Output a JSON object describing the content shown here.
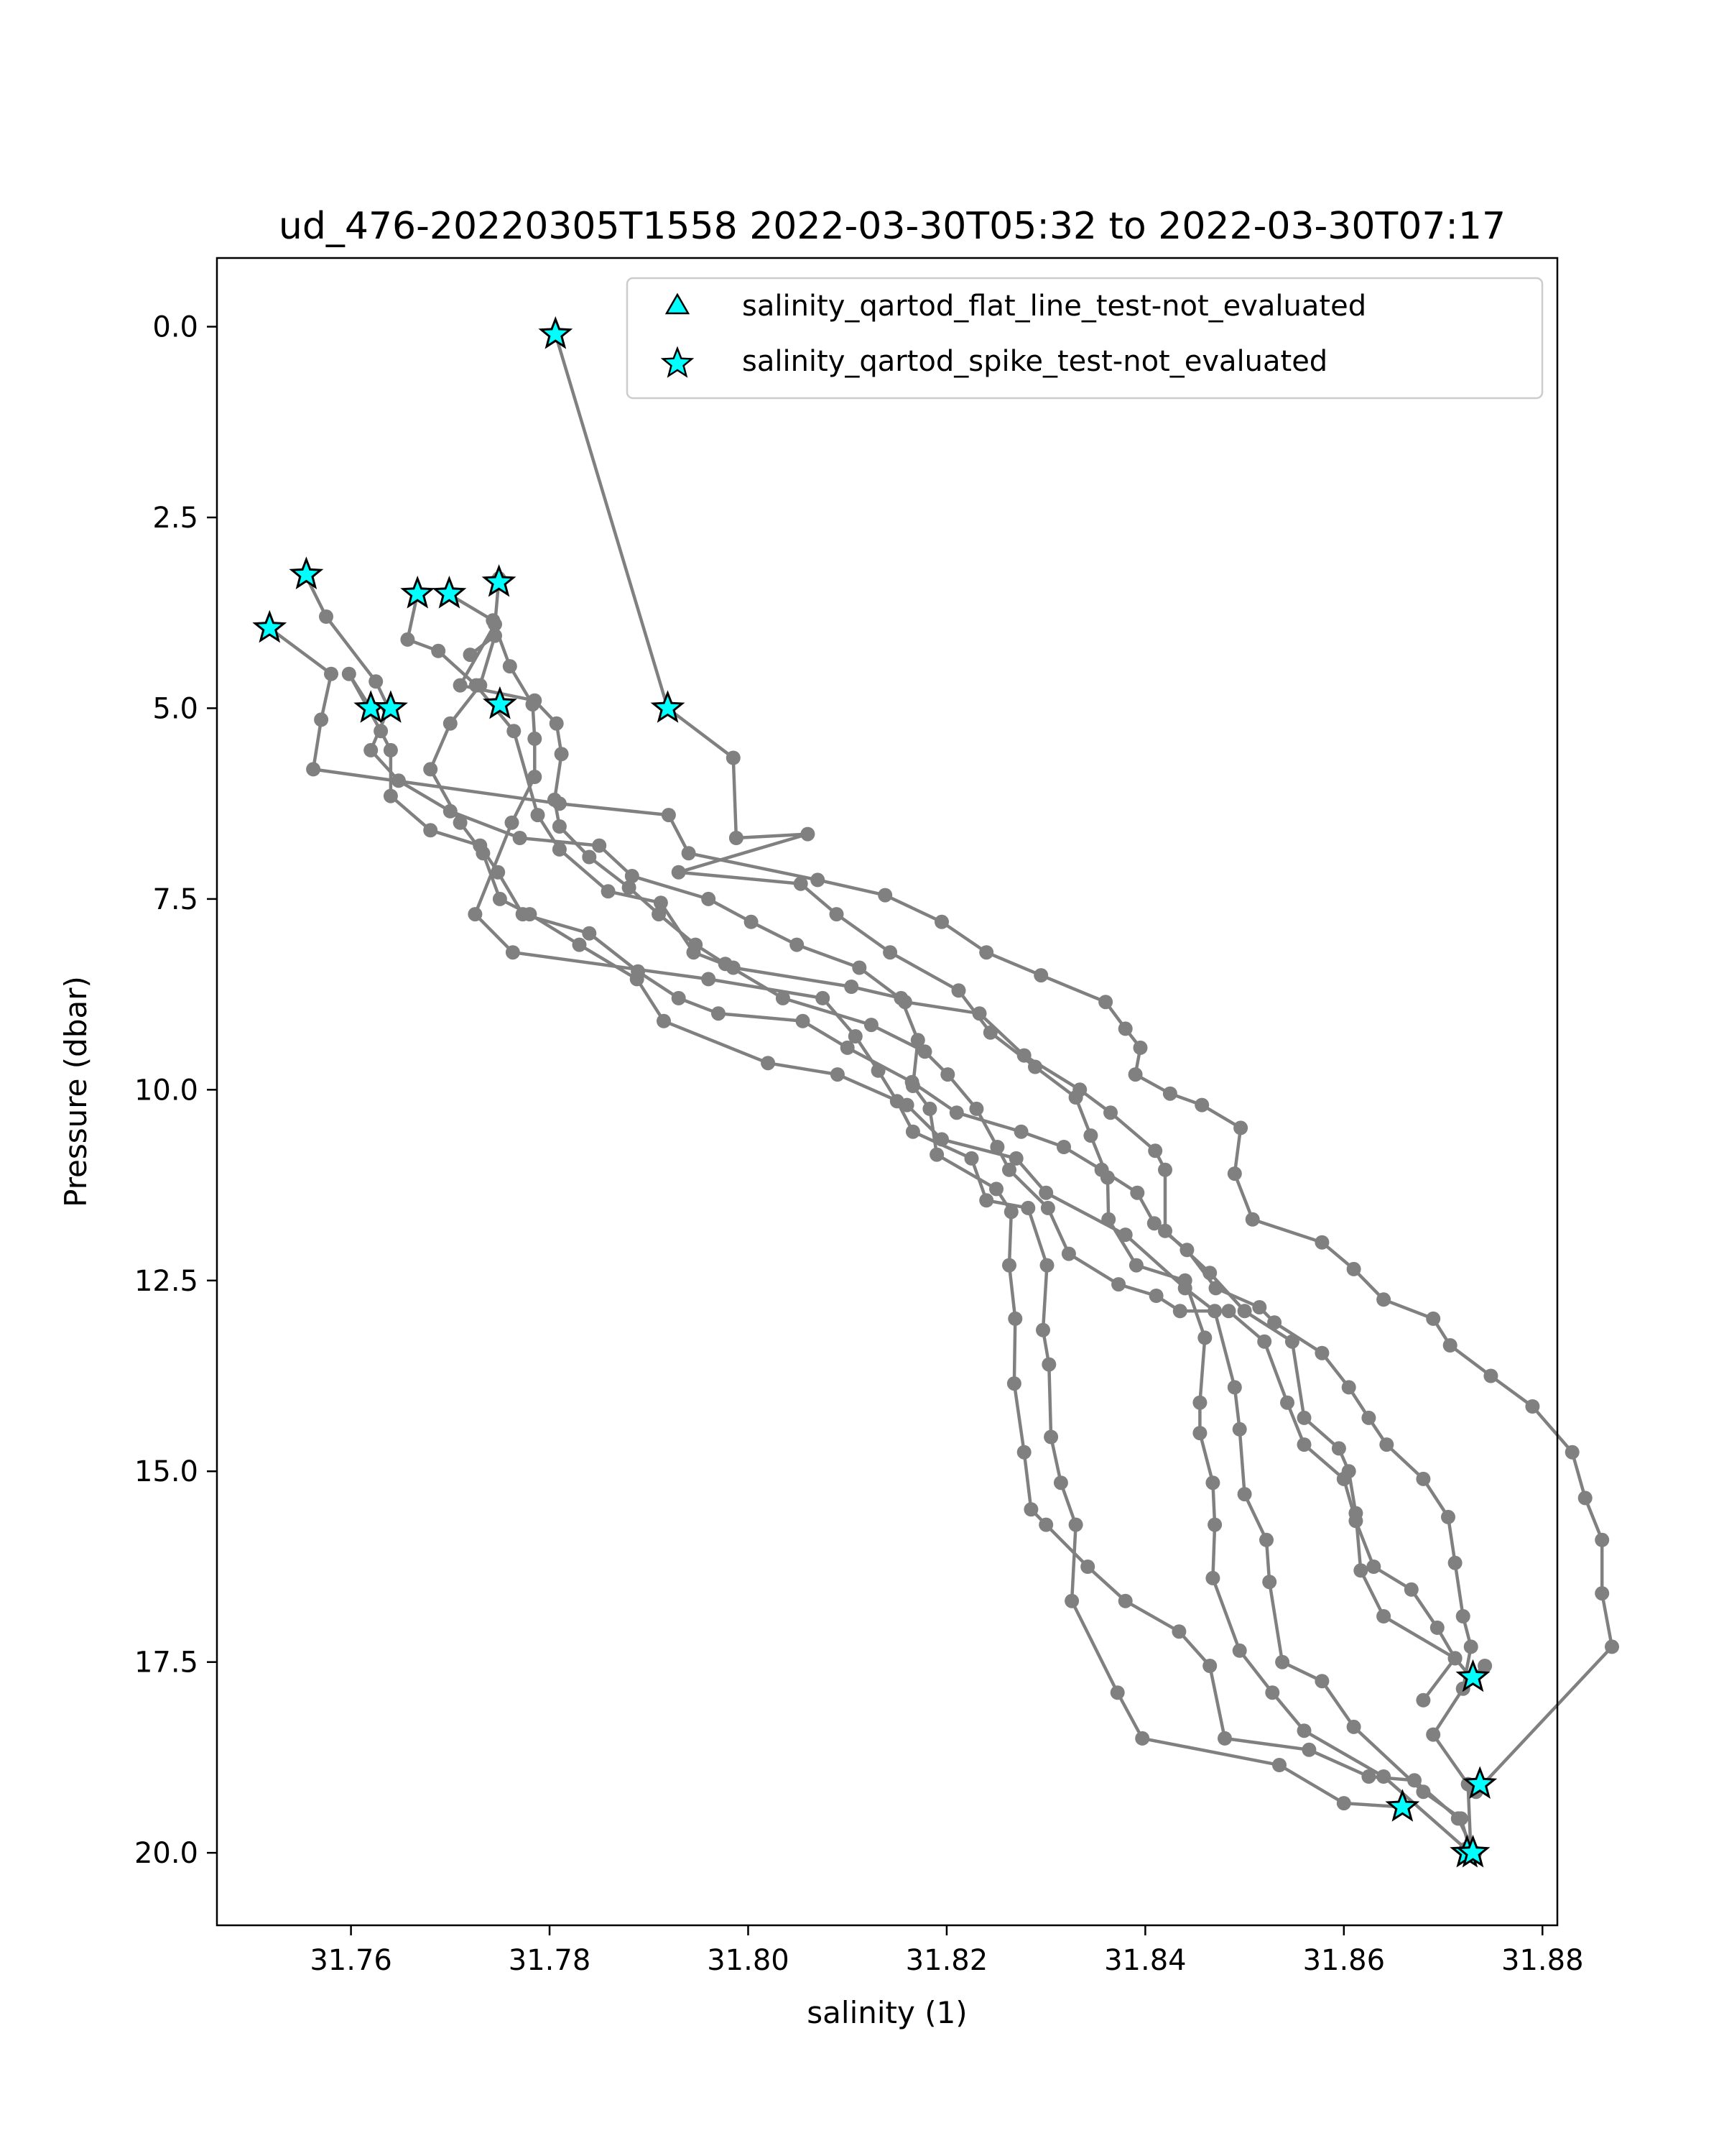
{
  "chart_data": {
    "type": "scatter",
    "title": "ud_476-20220305T1558 2022-03-30T05:32 to 2022-03-30T07:17",
    "xlabel": "salinity (1)",
    "ylabel": "Pressure (dbar)",
    "xlim": [
      31.7465,
      31.8815
    ],
    "ylim": [
      20.95,
      -0.9
    ],
    "y_inverted": true,
    "xticks": [
      "31.76",
      "31.78",
      "31.80",
      "31.82",
      "31.84",
      "31.86",
      "31.88"
    ],
    "yticks": [
      "0.0",
      "2.5",
      "5.0",
      "7.5",
      "10.0",
      "12.5",
      "15.0",
      "17.5",
      "20.0"
    ],
    "xtick_values": [
      31.76,
      31.78,
      31.8,
      31.82,
      31.84,
      31.86,
      31.88
    ],
    "ytick_values": [
      0.0,
      2.5,
      5.0,
      7.5,
      10.0,
      12.5,
      15.0,
      17.5,
      20.0
    ],
    "grid": false,
    "legend_position": "top-right",
    "legend": [
      {
        "label": "salinity_qartod_flat_line_test-not_evaluated",
        "marker": "triangle"
      },
      {
        "label": "salinity_qartod_spike_test-not_evaluated",
        "marker": "star"
      }
    ],
    "colors": {
      "profile_line": "#808080",
      "flag_marker": "#00ffff",
      "marker_edge": "#000000"
    },
    "series": [
      {
        "points": [
          [
            31.7806,
            0.1
          ],
          [
            31.7919,
            5.0
          ],
          [
            31.7985,
            5.65
          ],
          [
            31.7988,
            6.7
          ],
          [
            31.806,
            6.65
          ],
          [
            31.793,
            7.15
          ],
          [
            31.8053,
            7.3
          ],
          [
            31.8089,
            7.7
          ],
          [
            31.8143,
            8.2
          ],
          [
            31.8212,
            8.7
          ],
          [
            31.8244,
            9.25
          ],
          [
            31.8289,
            9.7
          ],
          [
            31.833,
            10.1
          ],
          [
            31.8345,
            10.6
          ],
          [
            31.8362,
            11.15
          ],
          [
            31.8363,
            11.7
          ],
          [
            31.8391,
            12.3
          ],
          [
            31.844,
            12.5
          ],
          [
            31.846,
            13.25
          ],
          [
            31.8455,
            14.1
          ],
          [
            31.8455,
            14.5
          ],
          [
            31.8468,
            15.15
          ],
          [
            31.847,
            15.7
          ],
          [
            31.8468,
            16.4
          ],
          [
            31.8495,
            17.35
          ],
          [
            31.8528,
            17.9
          ],
          [
            31.856,
            18.4
          ],
          [
            31.864,
            19.0
          ],
          [
            31.8723,
            19.95
          ]
        ]
      },
      {
        "points": [
          [
            31.772,
            4.3
          ],
          [
            31.7745,
            4.05
          ],
          [
            31.773,
            4.7
          ],
          [
            31.77,
            5.2
          ],
          [
            31.768,
            5.8
          ],
          [
            31.771,
            6.5
          ],
          [
            31.7733,
            6.9
          ],
          [
            31.775,
            7.5
          ],
          [
            31.778,
            7.7
          ],
          [
            31.783,
            8.1
          ],
          [
            31.7888,
            8.55
          ],
          [
            31.7915,
            9.1
          ],
          [
            31.802,
            9.65
          ],
          [
            31.809,
            9.8
          ],
          [
            31.816,
            10.2
          ],
          [
            31.8195,
            10.65
          ],
          [
            31.827,
            10.9
          ],
          [
            31.83,
            11.35
          ],
          [
            31.838,
            11.9
          ],
          [
            31.844,
            12.6
          ],
          [
            31.847,
            12.9
          ],
          [
            31.849,
            13.9
          ],
          [
            31.8495,
            14.45
          ],
          [
            31.85,
            15.3
          ],
          [
            31.8522,
            15.9
          ],
          [
            31.8525,
            16.45
          ],
          [
            31.8538,
            17.5
          ],
          [
            31.8578,
            17.75
          ],
          [
            31.861,
            18.35
          ],
          [
            31.868,
            19.2
          ],
          [
            31.8718,
            19.55
          ],
          [
            31.8728,
            20.0
          ]
        ]
      },
      {
        "points": [
          [
            31.7667,
            3.5
          ],
          [
            31.7657,
            4.1
          ],
          [
            31.7688,
            4.25
          ],
          [
            31.7726,
            4.7
          ],
          [
            31.7764,
            5.3
          ],
          [
            31.7788,
            6.4
          ],
          [
            31.781,
            6.85
          ],
          [
            31.7859,
            7.4
          ],
          [
            31.7912,
            7.55
          ],
          [
            31.7945,
            8.2
          ],
          [
            31.7985,
            8.4
          ],
          [
            31.8104,
            8.65
          ],
          [
            31.8154,
            8.8
          ],
          [
            31.8171,
            9.35
          ],
          [
            31.8166,
            9.95
          ],
          [
            31.8183,
            10.25
          ],
          [
            31.819,
            10.85
          ],
          [
            31.825,
            11.3
          ],
          [
            31.8265,
            11.6
          ],
          [
            31.8263,
            12.3
          ],
          [
            31.8269,
            13.0
          ],
          [
            31.8268,
            13.85
          ],
          [
            31.8278,
            14.75
          ],
          [
            31.8285,
            15.5
          ],
          [
            31.83,
            15.7
          ],
          [
            31.8342,
            16.25
          ],
          [
            31.838,
            16.7
          ],
          [
            31.8434,
            17.1
          ],
          [
            31.8465,
            17.55
          ],
          [
            31.848,
            18.5
          ],
          [
            31.8565,
            18.65
          ],
          [
            31.8625,
            19.0
          ],
          [
            31.8671,
            19.05
          ],
          [
            31.8715,
            19.55
          ],
          [
            31.8732,
            20.0
          ]
        ]
      },
      {
        "points": [
          [
            31.7698,
            3.5
          ],
          [
            31.7743,
            3.85
          ],
          [
            31.776,
            4.45
          ],
          [
            31.7783,
            4.95
          ],
          [
            31.7785,
            5.4
          ],
          [
            31.7785,
            5.9
          ],
          [
            31.7762,
            6.5
          ],
          [
            31.7725,
            7.7
          ],
          [
            31.7763,
            8.2
          ],
          [
            31.796,
            8.55
          ],
          [
            31.8075,
            8.8
          ],
          [
            31.8108,
            9.3
          ],
          [
            31.8131,
            9.75
          ],
          [
            31.815,
            10.15
          ],
          [
            31.8166,
            10.55
          ],
          [
            31.8225,
            10.9
          ],
          [
            31.824,
            11.45
          ],
          [
            31.8282,
            11.55
          ],
          [
            31.8301,
            12.3
          ],
          [
            31.8297,
            13.15
          ],
          [
            31.8303,
            13.6
          ],
          [
            31.8305,
            14.55
          ],
          [
            31.8315,
            15.15
          ],
          [
            31.833,
            15.7
          ],
          [
            31.8326,
            16.7
          ],
          [
            31.8372,
            17.9
          ],
          [
            31.8397,
            18.5
          ],
          [
            31.8535,
            18.85
          ],
          [
            31.86,
            19.35
          ],
          [
            31.8659,
            19.4
          ]
        ]
      },
      {
        "points": [
          [
            31.7554,
            3.25
          ],
          [
            31.7575,
            3.8
          ],
          [
            31.7625,
            4.65
          ],
          [
            31.7638,
            5.0
          ],
          [
            31.762,
            5.55
          ],
          [
            31.7648,
            5.95
          ],
          [
            31.77,
            6.35
          ],
          [
            31.777,
            6.7
          ],
          [
            31.785,
            6.8
          ],
          [
            31.7883,
            7.2
          ],
          [
            31.796,
            7.5
          ],
          [
            31.8003,
            7.8
          ],
          [
            31.8049,
            8.1
          ],
          [
            31.8112,
            8.4
          ],
          [
            31.8158,
            8.85
          ],
          [
            31.8233,
            9.0
          ],
          [
            31.8278,
            9.55
          ],
          [
            31.8334,
            10.0
          ],
          [
            31.8365,
            10.3
          ],
          [
            31.841,
            10.8
          ],
          [
            31.842,
            11.05
          ],
          [
            31.842,
            11.85
          ],
          [
            31.8465,
            12.4
          ],
          [
            31.85,
            12.9
          ],
          [
            31.8548,
            13.3
          ],
          [
            31.856,
            14.3
          ],
          [
            31.8595,
            14.7
          ],
          [
            31.8605,
            15.0
          ],
          [
            31.8612,
            15.55
          ],
          [
            31.8617,
            16.3
          ],
          [
            31.864,
            16.9
          ],
          [
            31.8712,
            17.45
          ],
          [
            31.8728,
            17.7
          ],
          [
            31.8742,
            17.55
          ]
        ]
      },
      {
        "points": [
          [
            31.7749,
            3.3
          ],
          [
            31.7745,
            3.9
          ],
          [
            31.771,
            4.7
          ],
          [
            31.7785,
            4.9
          ],
          [
            31.7807,
            5.2
          ],
          [
            31.7812,
            5.6
          ],
          [
            31.7805,
            6.2
          ],
          [
            31.781,
            6.55
          ],
          [
            31.784,
            6.95
          ],
          [
            31.788,
            7.35
          ],
          [
            31.791,
            7.7
          ],
          [
            31.7947,
            8.1
          ],
          [
            31.7977,
            8.35
          ],
          [
            31.8035,
            8.8
          ],
          [
            31.8124,
            9.15
          ],
          [
            31.8178,
            9.5
          ],
          [
            31.8201,
            9.8
          ],
          [
            31.823,
            10.25
          ],
          [
            31.8251,
            10.75
          ],
          [
            31.8263,
            11.05
          ],
          [
            31.8302,
            11.55
          ],
          [
            31.8323,
            12.15
          ],
          [
            31.8373,
            12.55
          ],
          [
            31.8411,
            12.7
          ],
          [
            31.8435,
            12.9
          ],
          [
            31.8484,
            12.9
          ],
          [
            31.852,
            13.3
          ],
          [
            31.8543,
            14.1
          ],
          [
            31.856,
            14.65
          ],
          [
            31.86,
            15.1
          ],
          [
            31.8612,
            15.65
          ],
          [
            31.863,
            16.25
          ],
          [
            31.8668,
            16.55
          ],
          [
            31.8694,
            17.05
          ],
          [
            31.8712,
            17.45
          ],
          [
            31.868,
            18.0
          ]
        ]
      },
      {
        "points": [
          [
            31.7518,
            3.95
          ],
          [
            31.758,
            4.55
          ],
          [
            31.757,
            5.15
          ],
          [
            31.7562,
            5.8
          ],
          [
            31.781,
            6.25
          ],
          [
            31.792,
            6.4
          ],
          [
            31.794,
            6.9
          ],
          [
            31.807,
            7.25
          ],
          [
            31.8138,
            7.45
          ],
          [
            31.8195,
            7.8
          ],
          [
            31.824,
            8.2
          ],
          [
            31.8295,
            8.5
          ],
          [
            31.836,
            8.85
          ],
          [
            31.838,
            9.2
          ],
          [
            31.8395,
            9.45
          ],
          [
            31.839,
            9.8
          ],
          [
            31.8425,
            10.05
          ],
          [
            31.8457,
            10.2
          ],
          [
            31.8496,
            10.5
          ],
          [
            31.849,
            11.1
          ],
          [
            31.8508,
            11.7
          ],
          [
            31.8578,
            12.0
          ],
          [
            31.861,
            12.35
          ],
          [
            31.864,
            12.75
          ],
          [
            31.869,
            13.0
          ],
          [
            31.8707,
            13.35
          ],
          [
            31.8748,
            13.75
          ],
          [
            31.879,
            14.15
          ],
          [
            31.883,
            14.75
          ],
          [
            31.8843,
            15.35
          ],
          [
            31.886,
            15.9
          ],
          [
            31.886,
            16.6
          ],
          [
            31.887,
            17.3
          ],
          [
            31.8733,
            19.2
          ]
        ]
      },
      {
        "points": [
          [
            31.762,
            5.0
          ],
          [
            31.7598,
            4.55
          ],
          [
            31.763,
            5.3
          ],
          [
            31.764,
            5.55
          ],
          [
            31.764,
            6.15
          ],
          [
            31.768,
            6.6
          ],
          [
            31.773,
            6.8
          ],
          [
            31.7748,
            7.15
          ],
          [
            31.7773,
            7.7
          ],
          [
            31.784,
            7.95
          ],
          [
            31.7889,
            8.45
          ],
          [
            31.793,
            8.8
          ],
          [
            31.797,
            9.0
          ],
          [
            31.8055,
            9.1
          ],
          [
            31.81,
            9.45
          ],
          [
            31.8165,
            9.9
          ],
          [
            31.821,
            10.3
          ],
          [
            31.8275,
            10.55
          ],
          [
            31.8318,
            10.75
          ],
          [
            31.8356,
            11.05
          ],
          [
            31.8392,
            11.35
          ],
          [
            31.8409,
            11.75
          ],
          [
            31.8442,
            12.1
          ],
          [
            31.8471,
            12.6
          ],
          [
            31.8515,
            12.85
          ],
          [
            31.853,
            13.05
          ],
          [
            31.8578,
            13.45
          ],
          [
            31.8605,
            13.9
          ],
          [
            31.8625,
            14.3
          ],
          [
            31.8643,
            14.65
          ],
          [
            31.868,
            15.1
          ],
          [
            31.8705,
            15.6
          ],
          [
            31.8712,
            16.2
          ],
          [
            31.872,
            16.9
          ],
          [
            31.8728,
            17.3
          ],
          [
            31.872,
            17.85
          ],
          [
            31.869,
            18.45
          ],
          [
            31.8725,
            19.1
          ],
          [
            31.8728,
            20.0
          ]
        ]
      }
    ],
    "flagged_points": [
      [
        31.7806,
        0.1
      ],
      [
        31.7555,
        3.25
      ],
      [
        31.7518,
        3.95
      ],
      [
        31.7667,
        3.5
      ],
      [
        31.7699,
        3.5
      ],
      [
        31.7749,
        3.35
      ],
      [
        31.775,
        4.95
      ],
      [
        31.7919,
        5.0
      ],
      [
        31.762,
        5.0
      ],
      [
        31.764,
        5.0
      ],
      [
        31.873,
        17.7
      ],
      [
        31.8737,
        19.1
      ],
      [
        31.8659,
        19.4
      ],
      [
        31.8724,
        20.0
      ],
      [
        31.873,
        20.0
      ]
    ]
  }
}
